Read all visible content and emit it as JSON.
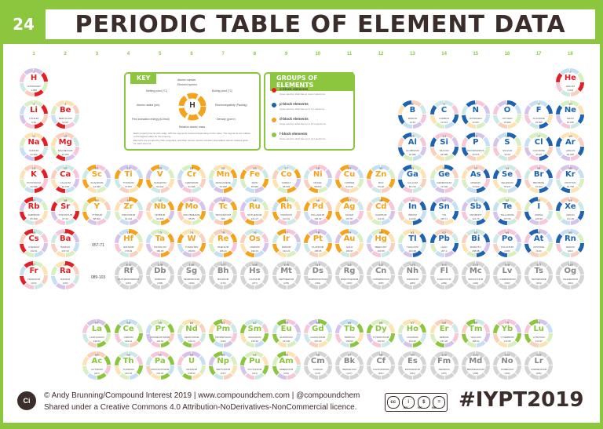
{
  "header": {
    "number": "24",
    "title": "PERIODIC TABLE OF ELEMENT DATA"
  },
  "groups": [
    "1",
    "2",
    "3",
    "4",
    "5",
    "6",
    "7",
    "8",
    "9",
    "10",
    "11",
    "12",
    "13",
    "14",
    "15",
    "16",
    "17",
    "18"
  ],
  "ranges": {
    "lanthanides": "057-71",
    "actinides": "089-103"
  },
  "key": {
    "title": "KEY",
    "sample_symbol": "H",
    "labels": {
      "atomic": "Atomic number",
      "symbol": "Element symbol",
      "melting": "Melting point (°C)",
      "boiling": "Boiling point (°C)",
      "electroneg": "Electronegativity (Pauling)",
      "density": "Density (g/cm³)",
      "atomic_radius": "Atomic radius (pm)",
      "first_ion": "First ionisation energy (kJ/mol)",
      "mass": "Relative atomic mass"
    },
    "note1": "Each property has its own scale, with the segments coloured depending on the value. The segments are relative to the highest value for the property.",
    "note2": "Elements are grouped by their properties, with their names, atomic numbers and relative atomic masses given for each element."
  },
  "groups_panel": {
    "title": "GROUPS OF ELEMENTS",
    "items": [
      {
        "name": "s-block elements",
        "desc": "Outer electron shell has at most 2 electrons",
        "color": "#e31e24"
      },
      {
        "name": "p-block elements",
        "desc": "Outer electron shell has up to 6 p electrons",
        "color": "#1e63b0"
      },
      {
        "name": "d-block elements",
        "desc": "Outer electron shell has up to 10 d electrons",
        "color": "#f5a31a"
      },
      {
        "name": "f-block elements",
        "desc": "Outer electron shell has up to 14 f electrons",
        "color": "#8cc63f"
      }
    ]
  },
  "block_colors": {
    "s": "#e31e24",
    "p": "#1e63b0",
    "d": "#f5a31a",
    "f": "#8cc63f",
    "unknown": "#888888"
  },
  "elements": [
    {
      "z": 1,
      "sym": "H",
      "name": "HYDROGEN",
      "mass": "1.008",
      "b": "s",
      "g": 1,
      "p": 1
    },
    {
      "z": 2,
      "sym": "He",
      "name": "HELIUM",
      "mass": "4.003",
      "b": "s",
      "g": 18,
      "p": 1
    },
    {
      "z": 3,
      "sym": "Li",
      "name": "LITHIUM",
      "mass": "6.94",
      "b": "s",
      "g": 1,
      "p": 2
    },
    {
      "z": 4,
      "sym": "Be",
      "name": "BERYLLIUM",
      "mass": "9.012",
      "b": "s",
      "g": 2,
      "p": 2
    },
    {
      "z": 5,
      "sym": "B",
      "name": "BORON",
      "mass": "10.81",
      "b": "p",
      "g": 13,
      "p": 2
    },
    {
      "z": 6,
      "sym": "C",
      "name": "CARBON",
      "mass": "12.011",
      "b": "p",
      "g": 14,
      "p": 2
    },
    {
      "z": 7,
      "sym": "N",
      "name": "NITROGEN",
      "mass": "14.007",
      "b": "p",
      "g": 15,
      "p": 2
    },
    {
      "z": 8,
      "sym": "O",
      "name": "OXYGEN",
      "mass": "15.999",
      "b": "p",
      "g": 16,
      "p": 2
    },
    {
      "z": 9,
      "sym": "F",
      "name": "FLUORINE",
      "mass": "18.998",
      "b": "p",
      "g": 17,
      "p": 2
    },
    {
      "z": 10,
      "sym": "Ne",
      "name": "NEON",
      "mass": "20.180",
      "b": "p",
      "g": 18,
      "p": 2
    },
    {
      "z": 11,
      "sym": "Na",
      "name": "SODIUM",
      "mass": "22.990",
      "b": "s",
      "g": 1,
      "p": 3
    },
    {
      "z": 12,
      "sym": "Mg",
      "name": "MAGNESIUM",
      "mass": "24.305",
      "b": "s",
      "g": 2,
      "p": 3
    },
    {
      "z": 13,
      "sym": "Al",
      "name": "ALUMINIUM",
      "mass": "26.982",
      "b": "p",
      "g": 13,
      "p": 3
    },
    {
      "z": 14,
      "sym": "Si",
      "name": "SILICON",
      "mass": "28.085",
      "b": "p",
      "g": 14,
      "p": 3
    },
    {
      "z": 15,
      "sym": "P",
      "name": "PHOSPHORUS",
      "mass": "30.974",
      "b": "p",
      "g": 15,
      "p": 3
    },
    {
      "z": 16,
      "sym": "S",
      "name": "SULFUR",
      "mass": "32.06",
      "b": "p",
      "g": 16,
      "p": 3
    },
    {
      "z": 17,
      "sym": "Cl",
      "name": "CHLORINE",
      "mass": "35.45",
      "b": "p",
      "g": 17,
      "p": 3
    },
    {
      "z": 18,
      "sym": "Ar",
      "name": "ARGON",
      "mass": "39.948",
      "b": "p",
      "g": 18,
      "p": 3
    },
    {
      "z": 19,
      "sym": "K",
      "name": "POTASSIUM",
      "mass": "39.098",
      "b": "s",
      "g": 1,
      "p": 4
    },
    {
      "z": 20,
      "sym": "Ca",
      "name": "CALCIUM",
      "mass": "40.078",
      "b": "s",
      "g": 2,
      "p": 4
    },
    {
      "z": 21,
      "sym": "Sc",
      "name": "SCANDIUM",
      "mass": "44.956",
      "b": "d",
      "g": 3,
      "p": 4
    },
    {
      "z": 22,
      "sym": "Ti",
      "name": "TITANIUM",
      "mass": "47.867",
      "b": "d",
      "g": 4,
      "p": 4
    },
    {
      "z": 23,
      "sym": "V",
      "name": "VANADIUM",
      "mass": "50.942",
      "b": "d",
      "g": 5,
      "p": 4
    },
    {
      "z": 24,
      "sym": "Cr",
      "name": "CHROMIUM",
      "mass": "51.996",
      "b": "d",
      "g": 6,
      "p": 4
    },
    {
      "z": 25,
      "sym": "Mn",
      "name": "MANGANESE",
      "mass": "54.938",
      "b": "d",
      "g": 7,
      "p": 4
    },
    {
      "z": 26,
      "sym": "Fe",
      "name": "IRON",
      "mass": "55.845",
      "b": "d",
      "g": 8,
      "p": 4
    },
    {
      "z": 27,
      "sym": "Co",
      "name": "COBALT",
      "mass": "58.933",
      "b": "d",
      "g": 9,
      "p": 4
    },
    {
      "z": 28,
      "sym": "Ni",
      "name": "NICKEL",
      "mass": "58.693",
      "b": "d",
      "g": 10,
      "p": 4
    },
    {
      "z": 29,
      "sym": "Cu",
      "name": "COPPER",
      "mass": "63.546",
      "b": "d",
      "g": 11,
      "p": 4
    },
    {
      "z": 30,
      "sym": "Zn",
      "name": "ZINC",
      "mass": "65.38",
      "b": "d",
      "g": 12,
      "p": 4
    },
    {
      "z": 31,
      "sym": "Ga",
      "name": "GALLIUM",
      "mass": "69.723",
      "b": "p",
      "g": 13,
      "p": 4
    },
    {
      "z": 32,
      "sym": "Ge",
      "name": "GERMANIUM",
      "mass": "72.630",
      "b": "p",
      "g": 14,
      "p": 4
    },
    {
      "z": 33,
      "sym": "As",
      "name": "ARSENIC",
      "mass": "74.922",
      "b": "p",
      "g": 15,
      "p": 4
    },
    {
      "z": 34,
      "sym": "Se",
      "name": "SELENIUM",
      "mass": "78.971",
      "b": "p",
      "g": 16,
      "p": 4
    },
    {
      "z": 35,
      "sym": "Br",
      "name": "BROMINE",
      "mass": "79.904",
      "b": "p",
      "g": 17,
      "p": 4
    },
    {
      "z": 36,
      "sym": "Kr",
      "name": "KRYPTON",
      "mass": "83.798",
      "b": "p",
      "g": 18,
      "p": 4
    },
    {
      "z": 37,
      "sym": "Rb",
      "name": "RUBIDIUM",
      "mass": "85.468",
      "b": "s",
      "g": 1,
      "p": 5
    },
    {
      "z": 38,
      "sym": "Sr",
      "name": "STRONTIUM",
      "mass": "87.62",
      "b": "s",
      "g": 2,
      "p": 5
    },
    {
      "z": 39,
      "sym": "Y",
      "name": "YTTRIUM",
      "mass": "88.906",
      "b": "d",
      "g": 3,
      "p": 5
    },
    {
      "z": 40,
      "sym": "Zr",
      "name": "ZIRCONIUM",
      "mass": "91.224",
      "b": "d",
      "g": 4,
      "p": 5
    },
    {
      "z": 41,
      "sym": "Nb",
      "name": "NIOBIUM",
      "mass": "92.906",
      "b": "d",
      "g": 5,
      "p": 5
    },
    {
      "z": 42,
      "sym": "Mo",
      "name": "MOLYBDENUM",
      "mass": "95.95",
      "b": "d",
      "g": 6,
      "p": 5
    },
    {
      "z": 43,
      "sym": "Tc",
      "name": "TECHNETIUM",
      "mass": "(98)",
      "b": "d",
      "g": 7,
      "p": 5
    },
    {
      "z": 44,
      "sym": "Ru",
      "name": "RUTHENIUM",
      "mass": "101.07",
      "b": "d",
      "g": 8,
      "p": 5
    },
    {
      "z": 45,
      "sym": "Rh",
      "name": "RHODIUM",
      "mass": "102.91",
      "b": "d",
      "g": 9,
      "p": 5
    },
    {
      "z": 46,
      "sym": "Pd",
      "name": "PALLADIUM",
      "mass": "106.42",
      "b": "d",
      "g": 10,
      "p": 5
    },
    {
      "z": 47,
      "sym": "Ag",
      "name": "SILVER",
      "mass": "107.87",
      "b": "d",
      "g": 11,
      "p": 5
    },
    {
      "z": 48,
      "sym": "Cd",
      "name": "CADMIUM",
      "mass": "112.41",
      "b": "d",
      "g": 12,
      "p": 5
    },
    {
      "z": 49,
      "sym": "In",
      "name": "INDIUM",
      "mass": "114.82",
      "b": "p",
      "g": 13,
      "p": 5
    },
    {
      "z": 50,
      "sym": "Sn",
      "name": "TIN",
      "mass": "118.71",
      "b": "p",
      "g": 14,
      "p": 5
    },
    {
      "z": 51,
      "sym": "Sb",
      "name": "ANTIMONY",
      "mass": "121.76",
      "b": "p",
      "g": 15,
      "p": 5
    },
    {
      "z": 52,
      "sym": "Te",
      "name": "TELLURIUM",
      "mass": "127.60",
      "b": "p",
      "g": 16,
      "p": 5
    },
    {
      "z": 53,
      "sym": "I",
      "name": "IODINE",
      "mass": "126.90",
      "b": "p",
      "g": 17,
      "p": 5
    },
    {
      "z": 54,
      "sym": "Xe",
      "name": "XENON",
      "mass": "131.29",
      "b": "p",
      "g": 18,
      "p": 5
    },
    {
      "z": 55,
      "sym": "Cs",
      "name": "CAESIUM",
      "mass": "132.91",
      "b": "s",
      "g": 1,
      "p": 6
    },
    {
      "z": 56,
      "sym": "Ba",
      "name": "BARIUM",
      "mass": "137.33",
      "b": "s",
      "g": 2,
      "p": 6
    },
    {
      "z": 72,
      "sym": "Hf",
      "name": "HAFNIUM",
      "mass": "178.49",
      "b": "d",
      "g": 4,
      "p": 6
    },
    {
      "z": 73,
      "sym": "Ta",
      "name": "TANTALUM",
      "mass": "180.95",
      "b": "d",
      "g": 5,
      "p": 6
    },
    {
      "z": 74,
      "sym": "W",
      "name": "TUNGSTEN",
      "mass": "183.84",
      "b": "d",
      "g": 6,
      "p": 6
    },
    {
      "z": 75,
      "sym": "Re",
      "name": "RHENIUM",
      "mass": "186.21",
      "b": "d",
      "g": 7,
      "p": 6
    },
    {
      "z": 76,
      "sym": "Os",
      "name": "OSMIUM",
      "mass": "190.23",
      "b": "d",
      "g": 8,
      "p": 6
    },
    {
      "z": 77,
      "sym": "Ir",
      "name": "IRIDIUM",
      "mass": "192.22",
      "b": "d",
      "g": 9,
      "p": 6
    },
    {
      "z": 78,
      "sym": "Pt",
      "name": "PLATINUM",
      "mass": "195.08",
      "b": "d",
      "g": 10,
      "p": 6
    },
    {
      "z": 79,
      "sym": "Au",
      "name": "GOLD",
      "mass": "196.97",
      "b": "d",
      "g": 11,
      "p": 6
    },
    {
      "z": 80,
      "sym": "Hg",
      "name": "MERCURY",
      "mass": "200.59",
      "b": "d",
      "g": 12,
      "p": 6
    },
    {
      "z": 81,
      "sym": "Tl",
      "name": "THALLIUM",
      "mass": "204.38",
      "b": "p",
      "g": 13,
      "p": 6
    },
    {
      "z": 82,
      "sym": "Pb",
      "name": "LEAD",
      "mass": "207.2",
      "b": "p",
      "g": 14,
      "p": 6
    },
    {
      "z": 83,
      "sym": "Bi",
      "name": "BISMUTH",
      "mass": "208.98",
      "b": "p",
      "g": 15,
      "p": 6
    },
    {
      "z": 84,
      "sym": "Po",
      "name": "POLONIUM",
      "mass": "(209)",
      "b": "p",
      "g": 16,
      "p": 6
    },
    {
      "z": 85,
      "sym": "At",
      "name": "ASTATINE",
      "mass": "(210)",
      "b": "p",
      "g": 17,
      "p": 6
    },
    {
      "z": 86,
      "sym": "Rn",
      "name": "RADON",
      "mass": "(222)",
      "b": "p",
      "g": 18,
      "p": 6
    },
    {
      "z": 87,
      "sym": "Fr",
      "name": "FRANCIUM",
      "mass": "(223)",
      "b": "s",
      "g": 1,
      "p": 7
    },
    {
      "z": 88,
      "sym": "Ra",
      "name": "RADIUM",
      "mass": "(226)",
      "b": "s",
      "g": 2,
      "p": 7
    },
    {
      "z": 104,
      "sym": "Rf",
      "name": "RUTHERFORDIUM",
      "mass": "(267)",
      "b": "unknown",
      "g": 4,
      "p": 7
    },
    {
      "z": 105,
      "sym": "Db",
      "name": "DUBNIUM",
      "mass": "(268)",
      "b": "unknown",
      "g": 5,
      "p": 7
    },
    {
      "z": 106,
      "sym": "Sg",
      "name": "SEABORGIUM",
      "mass": "(269)",
      "b": "unknown",
      "g": 6,
      "p": 7
    },
    {
      "z": 107,
      "sym": "Bh",
      "name": "BOHRIUM",
      "mass": "(270)",
      "b": "unknown",
      "g": 7,
      "p": 7
    },
    {
      "z": 108,
      "sym": "Hs",
      "name": "HASSIUM",
      "mass": "(277)",
      "b": "unknown",
      "g": 8,
      "p": 7
    },
    {
      "z": 109,
      "sym": "Mt",
      "name": "MEITNERIUM",
      "mass": "(278)",
      "b": "unknown",
      "g": 9,
      "p": 7
    },
    {
      "z": 110,
      "sym": "Ds",
      "name": "DARMSTADTIUM",
      "mass": "(281)",
      "b": "unknown",
      "g": 10,
      "p": 7
    },
    {
      "z": 111,
      "sym": "Rg",
      "name": "ROENTGENIUM",
      "mass": "(282)",
      "b": "unknown",
      "g": 11,
      "p": 7
    },
    {
      "z": 112,
      "sym": "Cn",
      "name": "COPERNICIUM",
      "mass": "(285)",
      "b": "unknown",
      "g": 12,
      "p": 7
    },
    {
      "z": 113,
      "sym": "Nh",
      "name": "NIHONIUM",
      "mass": "(286)",
      "b": "unknown",
      "g": 13,
      "p": 7
    },
    {
      "z": 114,
      "sym": "Fl",
      "name": "FLEROVIUM",
      "mass": "(289)",
      "b": "unknown",
      "g": 14,
      "p": 7
    },
    {
      "z": 115,
      "sym": "Mc",
      "name": "MOSCOVIUM",
      "mass": "(290)",
      "b": "unknown",
      "g": 15,
      "p": 7
    },
    {
      "z": 116,
      "sym": "Lv",
      "name": "LIVERMORIUM",
      "mass": "(293)",
      "b": "unknown",
      "g": 16,
      "p": 7
    },
    {
      "z": 117,
      "sym": "Ts",
      "name": "TENNESSINE",
      "mass": "(294)",
      "b": "unknown",
      "g": 17,
      "p": 7
    },
    {
      "z": 118,
      "sym": "Og",
      "name": "OGANESSON",
      "mass": "(294)",
      "b": "unknown",
      "g": 18,
      "p": 7
    },
    {
      "z": 57,
      "sym": "La",
      "name": "LANTHANUM",
      "mass": "138.91",
      "b": "f",
      "g": 3,
      "p": 9
    },
    {
      "z": 58,
      "sym": "Ce",
      "name": "CERIUM",
      "mass": "140.12",
      "b": "f",
      "g": 4,
      "p": 9
    },
    {
      "z": 59,
      "sym": "Pr",
      "name": "PRASEODYMIUM",
      "mass": "140.91",
      "b": "f",
      "g": 5,
      "p": 9
    },
    {
      "z": 60,
      "sym": "Nd",
      "name": "NEODYMIUM",
      "mass": "144.24",
      "b": "f",
      "g": 6,
      "p": 9
    },
    {
      "z": 61,
      "sym": "Pm",
      "name": "PROMETHIUM",
      "mass": "(145)",
      "b": "f",
      "g": 7,
      "p": 9
    },
    {
      "z": 62,
      "sym": "Sm",
      "name": "SAMARIUM",
      "mass": "150.36",
      "b": "f",
      "g": 8,
      "p": 9
    },
    {
      "z": 63,
      "sym": "Eu",
      "name": "EUROPIUM",
      "mass": "151.96",
      "b": "f",
      "g": 9,
      "p": 9
    },
    {
      "z": 64,
      "sym": "Gd",
      "name": "GADOLINIUM",
      "mass": "157.25",
      "b": "f",
      "g": 10,
      "p": 9
    },
    {
      "z": 65,
      "sym": "Tb",
      "name": "TERBIUM",
      "mass": "158.93",
      "b": "f",
      "g": 11,
      "p": 9
    },
    {
      "z": 66,
      "sym": "Dy",
      "name": "DYSPROSIUM",
      "mass": "162.50",
      "b": "f",
      "g": 12,
      "p": 9
    },
    {
      "z": 67,
      "sym": "Ho",
      "name": "HOLMIUM",
      "mass": "164.93",
      "b": "f",
      "g": 13,
      "p": 9
    },
    {
      "z": 68,
      "sym": "Er",
      "name": "ERBIUM",
      "mass": "167.26",
      "b": "f",
      "g": 14,
      "p": 9
    },
    {
      "z": 69,
      "sym": "Tm",
      "name": "THULIUM",
      "mass": "168.93",
      "b": "f",
      "g": 15,
      "p": 9
    },
    {
      "z": 70,
      "sym": "Yb",
      "name": "YTTERBIUM",
      "mass": "173.05",
      "b": "f",
      "g": 16,
      "p": 9
    },
    {
      "z": 71,
      "sym": "Lu",
      "name": "LUTETIUM",
      "mass": "174.97",
      "b": "f",
      "g": 17,
      "p": 9
    },
    {
      "z": 89,
      "sym": "Ac",
      "name": "ACTINIUM",
      "mass": "(227)",
      "b": "f",
      "g": 3,
      "p": 10
    },
    {
      "z": 90,
      "sym": "Th",
      "name": "THORIUM",
      "mass": "232.04",
      "b": "f",
      "g": 4,
      "p": 10
    },
    {
      "z": 91,
      "sym": "Pa",
      "name": "PROTACTINIUM",
      "mass": "231.04",
      "b": "f",
      "g": 5,
      "p": 10
    },
    {
      "z": 92,
      "sym": "U",
      "name": "URANIUM",
      "mass": "238.03",
      "b": "f",
      "g": 6,
      "p": 10
    },
    {
      "z": 93,
      "sym": "Np",
      "name": "NEPTUNIUM",
      "mass": "(237)",
      "b": "f",
      "g": 7,
      "p": 10
    },
    {
      "z": 94,
      "sym": "Pu",
      "name": "PLUTONIUM",
      "mass": "(244)",
      "b": "f",
      "g": 8,
      "p": 10
    },
    {
      "z": 95,
      "sym": "Am",
      "name": "AMERICIUM",
      "mass": "(243)",
      "b": "f",
      "g": 9,
      "p": 10
    },
    {
      "z": 96,
      "sym": "Cm",
      "name": "CURIUM",
      "mass": "(247)",
      "b": "unknown",
      "g": 10,
      "p": 10
    },
    {
      "z": 97,
      "sym": "Bk",
      "name": "BERKELIUM",
      "mass": "(247)",
      "b": "unknown",
      "g": 11,
      "p": 10
    },
    {
      "z": 98,
      "sym": "Cf",
      "name": "CALIFORNIUM",
      "mass": "(251)",
      "b": "unknown",
      "g": 12,
      "p": 10
    },
    {
      "z": 99,
      "sym": "Es",
      "name": "EINSTEINIUM",
      "mass": "(252)",
      "b": "unknown",
      "g": 13,
      "p": 10
    },
    {
      "z": 100,
      "sym": "Fm",
      "name": "FERMIUM",
      "mass": "(257)",
      "b": "unknown",
      "g": 14,
      "p": 10
    },
    {
      "z": 101,
      "sym": "Md",
      "name": "MENDELEVIUM",
      "mass": "(258)",
      "b": "unknown",
      "g": 15,
      "p": 10
    },
    {
      "z": 102,
      "sym": "No",
      "name": "NOBELIUM",
      "mass": "(259)",
      "b": "unknown",
      "g": 16,
      "p": 10
    },
    {
      "z": 103,
      "sym": "Lr",
      "name": "LAWRENCIUM",
      "mass": "(266)",
      "b": "unknown",
      "g": 17,
      "p": 10
    }
  ],
  "footer": {
    "logo": "Ci",
    "credit_line1": "© Andy Brunning/Compound Interest 2019 | www.compoundchem.com | @compoundchem",
    "credit_line2": "Shared under a Creative Commons 4.0 Attribution-NoDerivatives-NonCommercial licence.",
    "cc_icons": [
      "cc",
      "i",
      "$",
      "="
    ],
    "cc_labels": [
      "BY",
      "NC",
      "ND"
    ],
    "hashtag": "#IYPT2019"
  }
}
